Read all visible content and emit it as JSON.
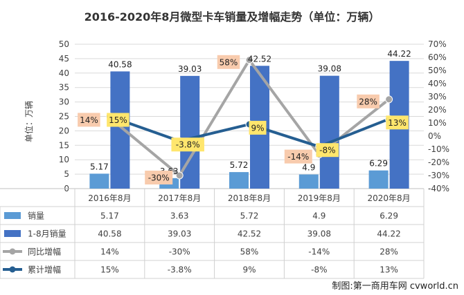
{
  "chart_data": {
    "type": "bar",
    "title": "2016-2020年8月微型卡车销量及增幅走势（单位：万辆）",
    "ylabel": "单位：万辆",
    "categories": [
      "2016年8月",
      "2017年8月",
      "2018年8月",
      "2019年8月",
      "2020年8月"
    ],
    "ylim": [
      0,
      50
    ],
    "y_ticks": [
      "0",
      "5",
      "10",
      "15",
      "20",
      "25",
      "30",
      "35",
      "40",
      "45",
      "50"
    ],
    "y2lim": [
      -40,
      70
    ],
    "y2_ticks": [
      "-40%",
      "-30%",
      "-20%",
      "-10%",
      "0%",
      "10%",
      "20%",
      "30%",
      "40%",
      "50%",
      "60%",
      "70%"
    ],
    "grid": true,
    "legend": "data-table",
    "series": [
      {
        "name": "销量",
        "kind": "bar",
        "axis": "left",
        "color": "#5b9bd5",
        "values": [
          5.17,
          3.63,
          5.72,
          4.9,
          6.29
        ],
        "labels": [
          "5.17",
          "3.63",
          "5.72",
          "4.9",
          "6.29"
        ]
      },
      {
        "name": "1-8月销量",
        "kind": "bar",
        "axis": "left",
        "color": "#4472c4",
        "values": [
          40.58,
          39.03,
          42.52,
          39.08,
          44.22
        ],
        "labels": [
          "40.58",
          "39.03",
          "42.52",
          "39.08",
          "44.22"
        ]
      },
      {
        "name": "同比增幅",
        "kind": "line",
        "axis": "right",
        "color": "#a5a5a5",
        "values": [
          14,
          -30,
          58,
          -14,
          28
        ],
        "labels": [
          "14%",
          "-30%",
          "58%",
          "-14%",
          "28%"
        ],
        "label_bg": "#f8cbad"
      },
      {
        "name": "累计增幅",
        "kind": "line",
        "axis": "right",
        "color": "#255e91",
        "values": [
          15,
          -3.8,
          9,
          -8,
          13
        ],
        "labels": [
          "15%",
          "-3.8%",
          "9%",
          "-8%",
          "13%"
        ],
        "label_bg": "#ffe66d"
      }
    ]
  },
  "credit": "制图:第一商用车网 cvworld.cn"
}
